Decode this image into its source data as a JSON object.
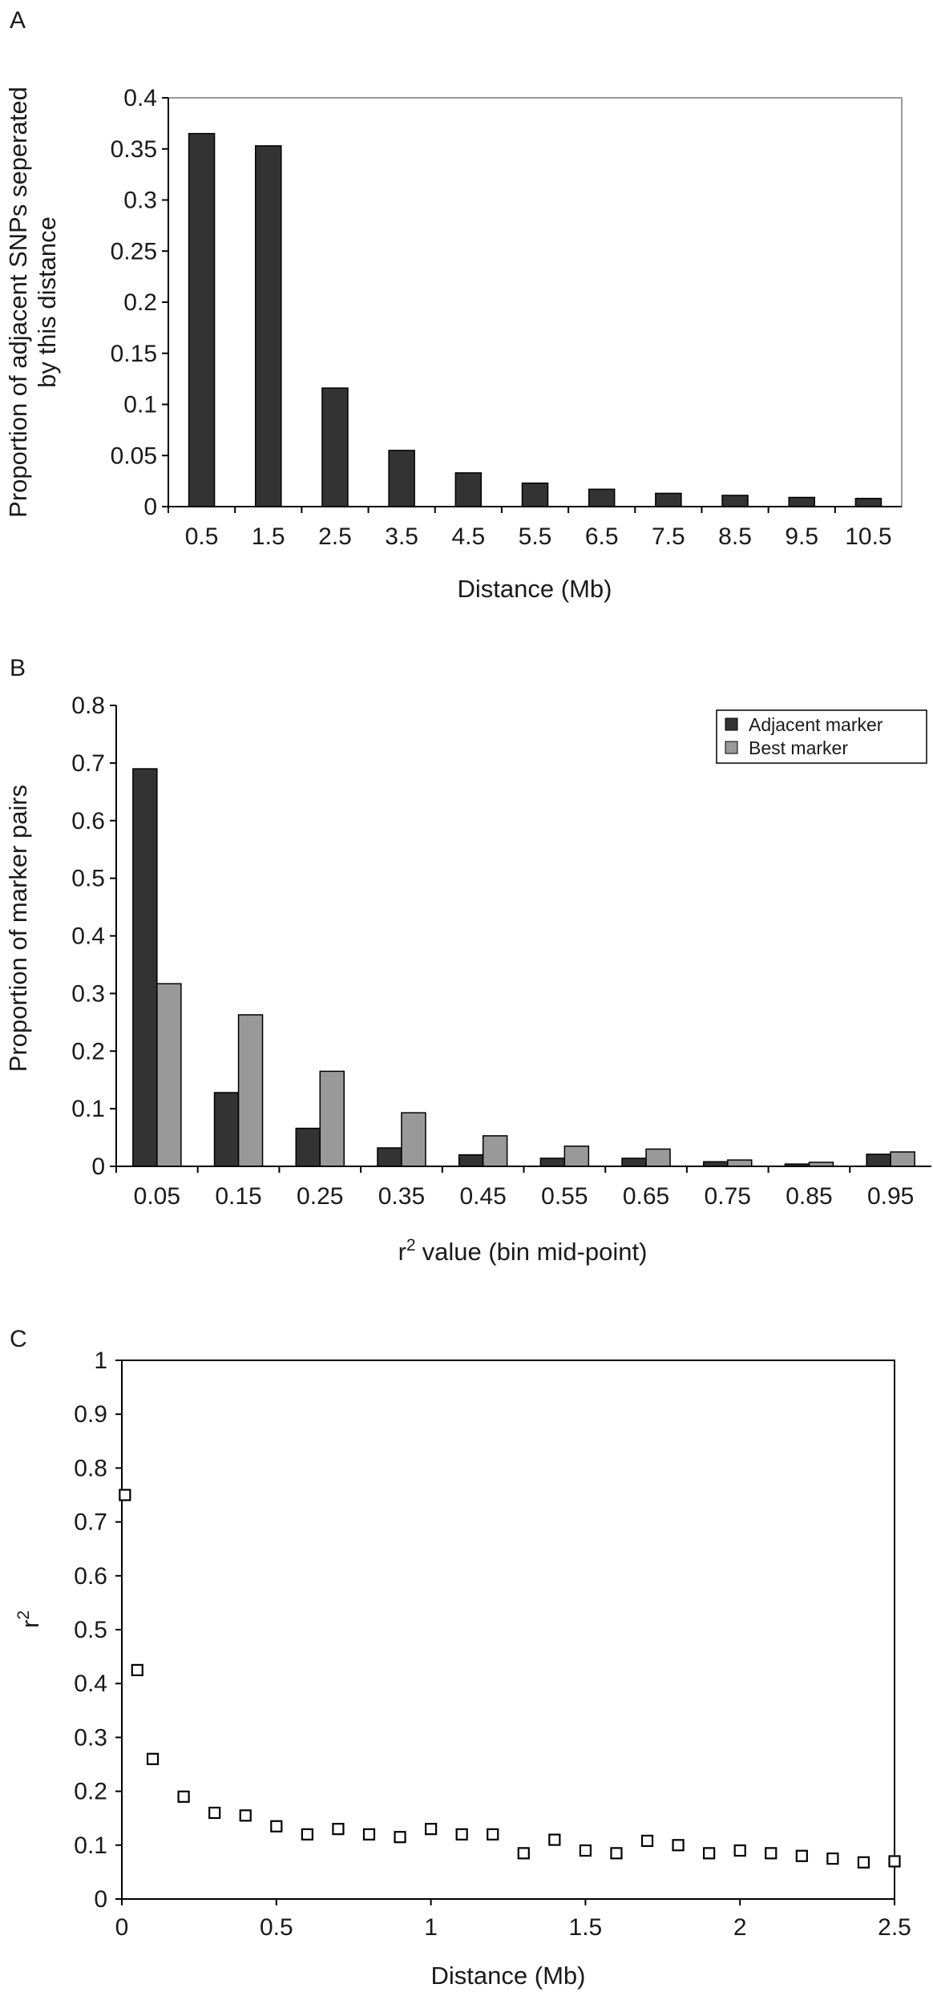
{
  "chart_data": [
    {
      "panel": "A",
      "type": "bar",
      "xlabel": "Distance (Mb)",
      "ylabel": "Proportion of adjacent SNPs seperated by this distance",
      "ylabel_lines": [
        "Proportion of adjacent SNPs seperated",
        "by this distance"
      ],
      "categories": [
        "0.5",
        "1.5",
        "2.5",
        "3.5",
        "4.5",
        "5.5",
        "6.5",
        "7.5",
        "8.5",
        "9.5",
        "10.5"
      ],
      "series": [
        {
          "values": [
            0.365,
            0.353,
            0.116,
            0.055,
            0.033,
            0.023,
            0.017,
            0.013,
            0.011,
            0.009,
            0.008
          ],
          "color": "#333333"
        }
      ],
      "ylim": [
        0,
        0.4
      ],
      "yticks": [
        "0",
        "0.05",
        "0.1",
        "0.15",
        "0.2",
        "0.25",
        "0.3",
        "0.35",
        "0.4"
      ],
      "grid": false
    },
    {
      "panel": "B",
      "type": "bar",
      "xlabel": "value (bin mid-point)",
      "xlabel_prefix": "r",
      "xlabel_sup": "2",
      "ylabel": "Proportion of marker pairs",
      "categories": [
        "0.05",
        "0.15",
        "0.25",
        "0.35",
        "0.45",
        "0.55",
        "0.65",
        "0.75",
        "0.85",
        "0.95"
      ],
      "series": [
        {
          "name": "Adjacent marker",
          "values": [
            0.69,
            0.128,
            0.066,
            0.032,
            0.02,
            0.014,
            0.014,
            0.008,
            0.004,
            0.021
          ],
          "color": "#333333"
        },
        {
          "name": "Best marker",
          "values": [
            0.317,
            0.263,
            0.165,
            0.093,
            0.053,
            0.035,
            0.03,
            0.011,
            0.007,
            0.025
          ],
          "color": "#999999"
        }
      ],
      "ylim": [
        0,
        0.8
      ],
      "yticks": [
        "0",
        "0.1",
        "0.2",
        "0.3",
        "0.4",
        "0.5",
        "0.6",
        "0.7",
        "0.8"
      ],
      "legend": "top-right",
      "grid": false
    },
    {
      "panel": "C",
      "type": "scatter",
      "xlabel": "Distance (Mb)",
      "ylabel": "r",
      "ylabel_sup": "2",
      "x": [
        0.01,
        0.05,
        0.1,
        0.2,
        0.3,
        0.4,
        0.5,
        0.6,
        0.7,
        0.8,
        0.9,
        1.0,
        1.1,
        1.2,
        1.3,
        1.4,
        1.5,
        1.6,
        1.7,
        1.8,
        1.9,
        2.0,
        2.1,
        2.2,
        2.3,
        2.4,
        2.5
      ],
      "y": [
        0.75,
        0.425,
        0.26,
        0.19,
        0.16,
        0.155,
        0.135,
        0.12,
        0.13,
        0.12,
        0.115,
        0.13,
        0.12,
        0.12,
        0.085,
        0.11,
        0.09,
        0.085,
        0.108,
        0.1,
        0.085,
        0.09,
        0.085,
        0.08,
        0.075,
        0.068,
        0.07
      ],
      "xlim": [
        0,
        2.5
      ],
      "ylim": [
        0,
        1
      ],
      "xticks": [
        "0",
        "0.5",
        "1",
        "1.5",
        "2",
        "2.5"
      ],
      "yticks": [
        "0",
        "0.1",
        "0.2",
        "0.3",
        "0.4",
        "0.5",
        "0.6",
        "0.7",
        "0.8",
        "0.9",
        "1"
      ],
      "marker": "open-square",
      "grid": false
    }
  ]
}
